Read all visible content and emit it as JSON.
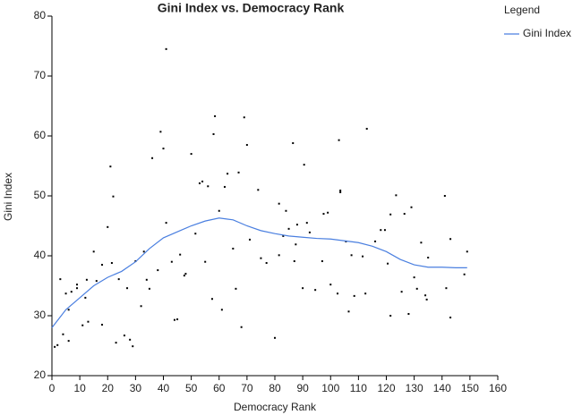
{
  "chart_data": {
    "type": "scatter",
    "title": "Gini Index vs. Democracy Rank",
    "x_label": "Democracy Rank",
    "y_label": "Gini Index",
    "legend_title": "Legend",
    "legend_position": "right",
    "xlim": [
      0,
      160
    ],
    "xticks": [
      0,
      10,
      20,
      30,
      40,
      50,
      60,
      70,
      80,
      90,
      100,
      110,
      120,
      130,
      140,
      150,
      160
    ],
    "ylim": [
      20,
      80
    ],
    "yticks": [
      20,
      30,
      40,
      50,
      60,
      70,
      80
    ],
    "points": {
      "color": "#000000",
      "x": [
        1,
        2,
        3,
        4,
        5,
        6,
        6,
        7,
        9,
        9,
        11,
        12,
        12.5,
        13,
        15,
        16,
        18,
        18,
        20,
        21,
        21.5,
        22,
        23,
        24,
        26,
        27,
        28,
        29,
        30,
        32,
        33,
        34,
        35,
        36,
        38,
        39,
        40,
        41,
        41,
        43,
        44,
        45,
        46,
        47.5,
        48,
        50,
        51.5,
        53,
        54,
        55,
        56,
        57.5,
        58,
        58.5,
        60,
        61,
        62,
        63,
        65,
        66,
        67,
        68,
        69,
        70,
        71,
        74,
        75,
        77,
        80,
        81.5,
        81.5,
        83,
        84,
        85,
        86.5,
        87,
        87.5,
        88,
        90,
        90.5,
        91.5,
        92.5,
        94.5,
        97,
        97.5,
        99,
        100,
        102.5,
        103,
        103.5,
        103.5,
        105.5,
        106.5,
        107.5,
        108.5,
        111.5,
        112.5,
        113,
        116,
        118,
        119.5,
        120.5,
        121.5,
        121.5,
        123.5,
        125.5,
        126.5,
        128,
        129,
        130,
        131,
        132.5,
        134,
        134.5,
        135,
        141,
        141.5,
        143,
        143,
        148,
        149
      ],
      "y": [
        24.8,
        25.1,
        36.1,
        26.9,
        33.7,
        25.8,
        31.0,
        34.0,
        35.2,
        34.6,
        28.4,
        33.0,
        36.0,
        29.0,
        40.7,
        35.8,
        38.5,
        28.5,
        44.8,
        54.9,
        38.8,
        49.9,
        25.5,
        36.1,
        26.7,
        34.6,
        26.0,
        24.9,
        39.1,
        31.6,
        40.7,
        36.0,
        34.5,
        56.3,
        37.6,
        60.7,
        57.9,
        74.5,
        45.5,
        39.0,
        29.3,
        29.4,
        40.2,
        36.7,
        37.0,
        57.0,
        43.7,
        52.1,
        52.4,
        39.0,
        51.6,
        32.8,
        60.3,
        63.3,
        47.5,
        31.0,
        51.5,
        53.7,
        41.2,
        34.5,
        53.9,
        28.1,
        63.1,
        58.5,
        42.7,
        51.0,
        39.6,
        38.8,
        26.3,
        48.7,
        40.1,
        43.3,
        47.5,
        44.5,
        58.8,
        39.1,
        41.9,
        45.2,
        34.6,
        55.2,
        45.5,
        43.9,
        34.3,
        39.1,
        47.0,
        47.2,
        35.2,
        33.7,
        59.3,
        50.9,
        50.6,
        42.4,
        30.7,
        40.1,
        33.3,
        39.9,
        33.7,
        61.2,
        42.4,
        44.3,
        44.3,
        38.7,
        46.9,
        30.0,
        50.1,
        34.0,
        47.0,
        30.3,
        48.1,
        36.4,
        34.5,
        42.2,
        33.4,
        32.7,
        39.7,
        50.0,
        34.6,
        29.7,
        42.8,
        36.9,
        40.7
      ]
    },
    "series": [
      {
        "name": "Gini Index",
        "color": "#4a7fe0",
        "x": [
          0,
          5,
          10,
          15,
          20,
          25,
          30,
          35,
          40,
          45,
          50,
          55,
          60,
          65,
          70,
          75,
          80,
          85,
          90,
          95,
          100,
          105,
          110,
          115,
          120,
          125,
          130,
          135,
          140,
          145,
          149
        ],
        "values": [
          28,
          31,
          33,
          35,
          36.4,
          37.4,
          39,
          41.2,
          43,
          44,
          45,
          45.8,
          46.3,
          46,
          45,
          44.2,
          43.7,
          43.3,
          43.1,
          42.9,
          42.8,
          42.5,
          42.2,
          41.6,
          40.7,
          39.4,
          38.5,
          38.1,
          38.1,
          38,
          38
        ]
      }
    ]
  }
}
